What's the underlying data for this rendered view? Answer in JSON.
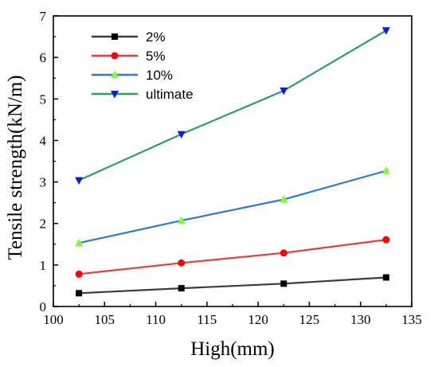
{
  "chart_data": {
    "type": "line",
    "xlabel": "High(mm)",
    "ylabel": "Tensile strength(kN/m)",
    "xlim": [
      100,
      135
    ],
    "ylim": [
      0,
      7
    ],
    "xticks": [
      100,
      105,
      110,
      115,
      120,
      125,
      130,
      135
    ],
    "yticks": [
      0,
      1,
      2,
      3,
      4,
      5,
      6,
      7
    ],
    "grid": false,
    "legend_position": "top-left",
    "x": [
      102.5,
      112.5,
      122.5,
      132.5
    ],
    "series": [
      {
        "name": "2%",
        "values": [
          0.32,
          0.44,
          0.55,
          0.7
        ],
        "line_color": "#3b3b3b",
        "marker": "square",
        "marker_color": "#000000"
      },
      {
        "name": "5%",
        "values": [
          0.78,
          1.05,
          1.29,
          1.61
        ],
        "line_color": "#ec3b3b",
        "marker": "circle",
        "marker_color": "#ff0000"
      },
      {
        "name": "10%",
        "values": [
          1.53,
          2.07,
          2.58,
          3.27
        ],
        "line_color": "#2d78d6",
        "marker": "triangle-up",
        "marker_color": "#7cff3a"
      },
      {
        "name": "ultimate",
        "values": [
          3.04,
          4.15,
          5.2,
          6.65
        ],
        "line_color": "#2e9f62",
        "marker": "triangle-down",
        "marker_color": "#0b1ce0"
      }
    ]
  }
}
